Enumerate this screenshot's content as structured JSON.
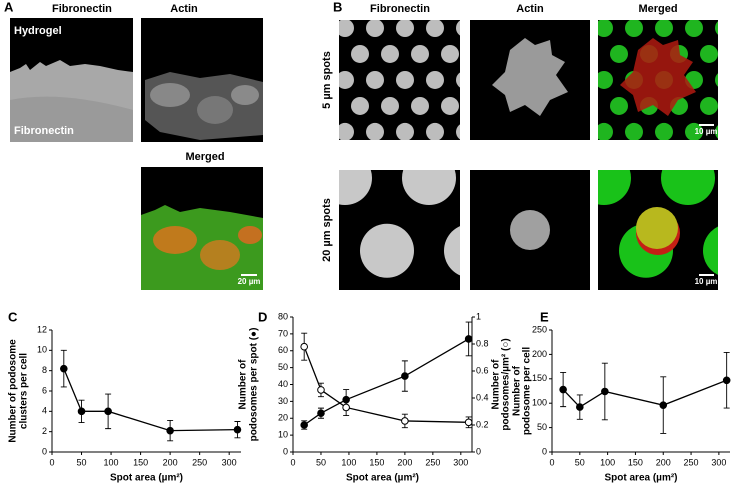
{
  "panels": {
    "A": {
      "label": "A",
      "headers": [
        "Fibronectin",
        "Actin"
      ],
      "image_labels": [
        "Hydrogel",
        "Fibronectin"
      ],
      "merged": "Merged",
      "scale": "20 µm"
    },
    "B": {
      "label": "B",
      "headers": [
        "Fibronectin",
        "Actin",
        "Merged"
      ],
      "rows": [
        "5 µm spots",
        "20 µm spots"
      ],
      "scales": [
        "10 µm",
        "10 µm"
      ]
    }
  },
  "chart_data": [
    {
      "type": "line",
      "label": "C",
      "xlabel": "Spot area (µm²)",
      "ylabel": [
        "Number of podosome",
        "clusters per cell"
      ],
      "x": [
        20,
        50,
        95,
        200,
        314
      ],
      "series": [
        {
          "color": "#000000",
          "marker": "filled",
          "values": [
            8.2,
            4.0,
            4.0,
            2.1,
            2.2
          ],
          "errors": [
            1.8,
            1.1,
            1.7,
            1.0,
            0.8
          ]
        }
      ],
      "xlim": [
        0,
        320
      ],
      "xticks": [
        0,
        50,
        100,
        150,
        200,
        250,
        300
      ],
      "ylim": [
        0,
        12
      ],
      "yticks": [
        0,
        2,
        4,
        6,
        8,
        10,
        12
      ]
    },
    {
      "type": "line",
      "label": "D",
      "xlabel": "Spot area (µm²)",
      "ylabel": [
        "Number of",
        "podosomes per spot (●)"
      ],
      "y2label": [
        "Number of",
        "podosomes/µm² (○)"
      ],
      "x": [
        20,
        50,
        95,
        200,
        314
      ],
      "series": [
        {
          "color": "#000000",
          "marker": "filled",
          "values": [
            16,
            23,
            31,
            45,
            67
          ],
          "errors": [
            2.5,
            3,
            6,
            9,
            10
          ]
        },
        {
          "color": "#000000",
          "marker": "open",
          "axis": "y2",
          "values": [
            0.78,
            0.46,
            0.33,
            0.23,
            0.22
          ],
          "errors": [
            0.1,
            0.05,
            0.06,
            0.05,
            0.04
          ]
        }
      ],
      "xlim": [
        0,
        320
      ],
      "xticks": [
        0,
        50,
        100,
        150,
        200,
        250,
        300
      ],
      "ylim": [
        0,
        80
      ],
      "yticks": [
        0,
        10,
        20,
        30,
        40,
        50,
        60,
        70,
        80
      ],
      "y2lim": [
        0,
        1
      ],
      "y2ticks": [
        0,
        0.2,
        0.4,
        0.6,
        0.8,
        1
      ]
    },
    {
      "type": "line",
      "label": "E",
      "xlabel": "Spot area (µm²)",
      "ylabel": [
        "Number of",
        "podosome per cell"
      ],
      "x": [
        20,
        50,
        95,
        200,
        314
      ],
      "series": [
        {
          "color": "#000000",
          "marker": "filled",
          "values": [
            128,
            92,
            124,
            96,
            147
          ],
          "errors": [
            35,
            25,
            58,
            58,
            57
          ]
        }
      ],
      "xlim": [
        0,
        320
      ],
      "xticks": [
        0,
        50,
        100,
        150,
        200,
        250,
        300
      ],
      "ylim": [
        0,
        250
      ],
      "yticks": [
        0,
        50,
        100,
        150,
        200,
        250
      ]
    }
  ]
}
